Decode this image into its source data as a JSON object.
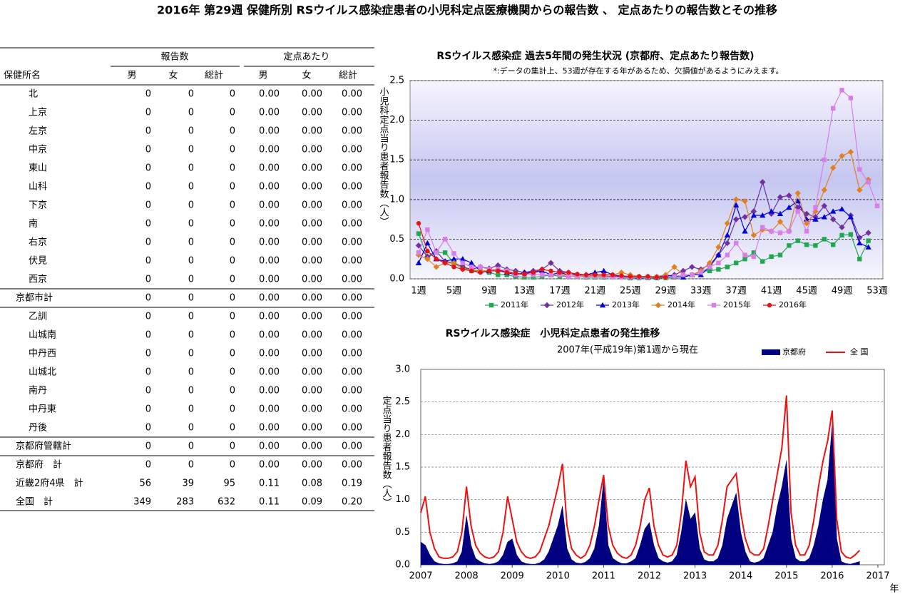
{
  "title": "2016年 第29週 保健所別 RSウイルス感染症患者の小児科定点医療機関からの報告数 、 定点あたりの報告数とその推移",
  "table": {
    "group_headers": [
      "報告数",
      "定点あたり"
    ],
    "columns": [
      "保健所名",
      "男",
      "女",
      "総計",
      "男",
      "女",
      "総計"
    ],
    "rows": [
      [
        "北",
        "0",
        "0",
        "0",
        "0.00",
        "0.00",
        "0.00"
      ],
      [
        "上京",
        "0",
        "0",
        "0",
        "0.00",
        "0.00",
        "0.00"
      ],
      [
        "左京",
        "0",
        "0",
        "0",
        "0.00",
        "0.00",
        "0.00"
      ],
      [
        "中京",
        "0",
        "0",
        "0",
        "0.00",
        "0.00",
        "0.00"
      ],
      [
        "東山",
        "0",
        "0",
        "0",
        "0.00",
        "0.00",
        "0.00"
      ],
      [
        "山科",
        "0",
        "0",
        "0",
        "0.00",
        "0.00",
        "0.00"
      ],
      [
        "下京",
        "0",
        "0",
        "0",
        "0.00",
        "0.00",
        "0.00"
      ],
      [
        "南",
        "0",
        "0",
        "0",
        "0.00",
        "0.00",
        "0.00"
      ],
      [
        "右京",
        "0",
        "0",
        "0",
        "0.00",
        "0.00",
        "0.00"
      ],
      [
        "伏見",
        "0",
        "0",
        "0",
        "0.00",
        "0.00",
        "0.00"
      ],
      [
        "西京",
        "0",
        "0",
        "0",
        "0.00",
        "0.00",
        "0.00"
      ],
      [
        "京都市計",
        "0",
        "0",
        "0",
        "0.00",
        "0.00",
        "0.00"
      ],
      [
        "乙訓",
        "0",
        "0",
        "0",
        "0.00",
        "0.00",
        "0.00"
      ],
      [
        "山城南",
        "0",
        "0",
        "0",
        "0.00",
        "0.00",
        "0.00"
      ],
      [
        "中丹西",
        "0",
        "0",
        "0",
        "0.00",
        "0.00",
        "0.00"
      ],
      [
        "山城北",
        "0",
        "0",
        "0",
        "0.00",
        "0.00",
        "0.00"
      ],
      [
        "南丹",
        "0",
        "0",
        "0",
        "0.00",
        "0.00",
        "0.00"
      ],
      [
        "中丹東",
        "0",
        "0",
        "0",
        "0.00",
        "0.00",
        "0.00"
      ],
      [
        "丹後",
        "0",
        "0",
        "0",
        "0.00",
        "0.00",
        "0.00"
      ],
      [
        "京都府管轄計",
        "0",
        "0",
        "0",
        "0.00",
        "0.00",
        "0.00"
      ],
      [
        "京都府　計",
        "0",
        "0",
        "0",
        "0.00",
        "0.00",
        "0.00"
      ],
      [
        "近畿2府4県　計",
        "56",
        "39",
        "95",
        "0.11",
        "0.08",
        "0.19"
      ],
      [
        "全国　計",
        "349",
        "283",
        "632",
        "0.11",
        "0.09",
        "0.20"
      ]
    ]
  },
  "chart_data": [
    {
      "type": "line",
      "title": "RSウイルス感染症 過去5年間の発生状況 (京都府、定点あたり報告数)",
      "subtitle": "*:データの集計上、53週が存在する年があるため、欠損値があるようにみえます。",
      "y_label": "小児科定点当り患者報告数（人）",
      "categories": [
        "1週",
        null,
        null,
        null,
        "5週",
        null,
        null,
        null,
        "9週",
        null,
        null,
        null,
        "13週",
        null,
        null,
        null,
        "17週",
        null,
        null,
        null,
        "21週",
        null,
        null,
        null,
        "25週",
        null,
        null,
        null,
        "29週",
        null,
        null,
        null,
        "33週",
        null,
        null,
        null,
        "37週",
        null,
        null,
        null,
        "41週",
        null,
        null,
        null,
        "45週",
        null,
        null,
        null,
        "49週",
        null,
        null,
        null,
        "53週"
      ],
      "ylim": [
        0,
        2.5
      ],
      "yticks": [
        {
          "value": 0,
          "label": "0.0"
        },
        0.5,
        {
          "value": 1,
          "label": "1.0"
        },
        1.5,
        {
          "value": 2,
          "label": "2.0"
        },
        2.5
      ],
      "grid": true,
      "series": [
        {
          "name": "2011年",
          "color": "#1fa84f",
          "marker": "square",
          "values": [
            0.57,
            0.27,
            0.33,
            0.33,
            0.2,
            0.15,
            0.1,
            0.1,
            0.08,
            0.05,
            0.05,
            0.03,
            0.02,
            0.02,
            0.03,
            0.05,
            0.03,
            0.03,
            0.03,
            0.02,
            0.02,
            0.02,
            0.02,
            0.02,
            0.01,
            0.01,
            0.01,
            0.01,
            0.01,
            0.02,
            0.03,
            0.05,
            0.1,
            0.1,
            0.12,
            0.15,
            0.2,
            0.25,
            0.33,
            0.22,
            0.28,
            0.3,
            0.42,
            0.48,
            0.43,
            0.42,
            0.5,
            0.43,
            0.55,
            0.56,
            0.25,
            0.48,
            null
          ]
        },
        {
          "name": "2012年",
          "color": "#7030a0",
          "marker": "diamond",
          "values": [
            0.42,
            0.28,
            0.35,
            0.22,
            0.2,
            0.15,
            0.12,
            0.15,
            0.13,
            0.17,
            0.12,
            0.1,
            0.08,
            0.1,
            0.12,
            0.2,
            0.1,
            0.08,
            0.05,
            0.05,
            0.05,
            0.03,
            0.03,
            0.03,
            0.03,
            0.02,
            0.02,
            0.02,
            0.03,
            0.05,
            0.1,
            0.15,
            0.12,
            0.18,
            0.3,
            0.45,
            0.75,
            0.78,
            0.85,
            1.22,
            0.82,
            1.03,
            1.05,
            0.9,
            0.82,
            0.78,
            0.92,
            0.75,
            0.65,
            0.8,
            0.52,
            0.58,
            null
          ]
        },
        {
          "name": "2013年",
          "color": "#0000dd",
          "marker": "triangle",
          "values": [
            0.2,
            0.45,
            0.25,
            0.22,
            0.25,
            0.25,
            0.2,
            0.1,
            0.1,
            0.12,
            0.08,
            0.05,
            0.08,
            0.08,
            0.1,
            0.05,
            0.08,
            0.05,
            0.05,
            0.05,
            0.08,
            0.1,
            0.05,
            0.03,
            0.02,
            0.03,
            0.02,
            0.02,
            0.05,
            0.03,
            0.02,
            0.05,
            0.05,
            0.15,
            0.3,
            0.55,
            0.93,
            0.6,
            0.8,
            0.8,
            0.85,
            0.82,
            0.9,
            0.98,
            0.75,
            0.75,
            0.78,
            0.85,
            0.88,
            0.78,
            0.45,
            0.4,
            null
          ]
        },
        {
          "name": "2014年",
          "color": "#e08020",
          "marker": "diamond",
          "values": [
            0.3,
            0.25,
            0.15,
            0.2,
            0.2,
            0.12,
            0.12,
            0.1,
            0.1,
            0.12,
            0.1,
            0.07,
            0.05,
            0.05,
            0.05,
            0.05,
            0.05,
            0.05,
            0.04,
            0.04,
            0.04,
            0.04,
            0.05,
            0.08,
            0.05,
            0.03,
            0.03,
            0.03,
            0.05,
            0.15,
            0.05,
            0.05,
            0.1,
            0.2,
            0.4,
            0.7,
            1.0,
            0.98,
            0.55,
            0.62,
            0.6,
            0.72,
            0.6,
            1.08,
            0.7,
            0.85,
            1.12,
            1.4,
            1.55,
            1.6,
            1.12,
            1.25,
            null
          ]
        },
        {
          "name": "2015年",
          "color": "#d77ee8",
          "marker": "square",
          "values": [
            0.33,
            0.62,
            0.33,
            0.5,
            0.32,
            0.2,
            0.15,
            0.15,
            0.12,
            0.12,
            0.1,
            0.05,
            0.05,
            0.05,
            0.05,
            0.05,
            0.05,
            0.03,
            0.03,
            0.03,
            0.03,
            0.03,
            0.02,
            0.02,
            0.02,
            0.02,
            0.02,
            0.02,
            0.02,
            0.03,
            0.05,
            0.05,
            0.08,
            0.15,
            0.2,
            0.3,
            0.45,
            0.3,
            0.28,
            0.65,
            0.6,
            0.58,
            0.6,
            0.85,
            0.6,
            0.9,
            1.5,
            2.15,
            2.38,
            2.28,
            1.38,
            1.22,
            0.92
          ]
        },
        {
          "name": "2016年",
          "color": "#e81010",
          "marker": "circle",
          "values": [
            0.7,
            0.35,
            0.25,
            0.2,
            0.15,
            0.12,
            0.1,
            0.08,
            0.1,
            0.1,
            0.08,
            0.07,
            0.06,
            0.08,
            0.12,
            0.1,
            0.08,
            0.08,
            0.06,
            0.05,
            0.05,
            0.05,
            0.05,
            0.04,
            0.03,
            0.03,
            0.03,
            0.02,
            0.02,
            null,
            null,
            null,
            null,
            null,
            null,
            null,
            null,
            null,
            null,
            null,
            null,
            null,
            null,
            null,
            null,
            null,
            null,
            null,
            null,
            null,
            null,
            null,
            null
          ]
        }
      ]
    },
    {
      "type": "area",
      "title": "RSウイルス感染症　小児科定点患者の発生推移",
      "subtitle": "2007年(平成19年)第1週から現在",
      "y_label": "定点当り患者報告数（人）",
      "x_label": "年",
      "xlim": [
        2007,
        2017
      ],
      "xticks": [
        2007,
        2008,
        2009,
        2010,
        2011,
        2012,
        2013,
        2014,
        2015,
        2016,
        2017
      ],
      "ylim": [
        0,
        3
      ],
      "yticks": [
        {
          "value": 0,
          "label": "0.0"
        },
        0.5,
        {
          "value": 1,
          "label": "1.0"
        },
        1.5,
        {
          "value": 2,
          "label": "2.0"
        },
        2.5,
        {
          "value": 3,
          "label": "3.0"
        }
      ],
      "grid": true,
      "x": [
        2007,
        2007.1,
        2007.2,
        2007.3,
        2007.4,
        2007.5,
        2007.6,
        2007.7,
        2007.8,
        2007.9,
        2008,
        2008.1,
        2008.2,
        2008.3,
        2008.4,
        2008.5,
        2008.6,
        2008.7,
        2008.8,
        2008.9,
        2009,
        2009.1,
        2009.2,
        2009.3,
        2009.4,
        2009.5,
        2009.6,
        2009.7,
        2009.8,
        2009.9,
        2010,
        2010.1,
        2010.2,
        2010.3,
        2010.4,
        2010.5,
        2010.6,
        2010.7,
        2010.8,
        2010.9,
        2011,
        2011.1,
        2011.2,
        2011.3,
        2011.4,
        2011.5,
        2011.6,
        2011.7,
        2011.8,
        2011.9,
        2012,
        2012.1,
        2012.2,
        2012.3,
        2012.4,
        2012.5,
        2012.6,
        2012.7,
        2012.8,
        2012.9,
        2013,
        2013.1,
        2013.2,
        2013.3,
        2013.4,
        2013.5,
        2013.6,
        2013.7,
        2013.8,
        2013.9,
        2014,
        2014.1,
        2014.2,
        2014.3,
        2014.4,
        2014.5,
        2014.6,
        2014.7,
        2014.8,
        2014.9,
        2015,
        2015.1,
        2015.2,
        2015.3,
        2015.4,
        2015.5,
        2015.6,
        2015.7,
        2015.8,
        2015.9,
        2016,
        2016.1,
        2016.2,
        2016.3,
        2016.4,
        2016.5,
        2016.6
      ],
      "series": [
        {
          "name": "京都府",
          "color": "#000080",
          "type": "area",
          "values": [
            0.35,
            0.3,
            0.15,
            0.05,
            0.02,
            0.01,
            0.01,
            0.02,
            0.05,
            0.2,
            0.75,
            0.3,
            0.1,
            0.05,
            0.02,
            0.01,
            0.02,
            0.05,
            0.15,
            0.35,
            0.4,
            0.15,
            0.05,
            0.02,
            0.01,
            0.01,
            0.03,
            0.08,
            0.2,
            0.4,
            0.6,
            0.9,
            0.25,
            0.08,
            0.03,
            0.02,
            0.04,
            0.1,
            0.25,
            0.6,
            1.3,
            0.3,
            0.1,
            0.05,
            0.02,
            0.02,
            0.05,
            0.1,
            0.3,
            0.55,
            0.65,
            0.3,
            0.1,
            0.05,
            0.03,
            0.05,
            0.15,
            0.5,
            1.0,
            0.7,
            0.8,
            0.25,
            0.08,
            0.05,
            0.05,
            0.1,
            0.3,
            0.7,
            0.9,
            1.1,
            0.5,
            0.2,
            0.05,
            0.03,
            0.05,
            0.1,
            0.3,
            0.5,
            0.9,
            1.2,
            1.6,
            0.4,
            0.1,
            0.05,
            0.05,
            0.1,
            0.3,
            0.6,
            1.0,
            1.3,
            2.15,
            0.4,
            0.05,
            0.02,
            0.01,
            0.03,
            0.05
          ]
        },
        {
          "name": "全 国",
          "color": "#ee1111",
          "type": "line",
          "values": [
            0.8,
            1.05,
            0.5,
            0.25,
            0.12,
            0.1,
            0.1,
            0.12,
            0.2,
            0.5,
            1.2,
            0.6,
            0.3,
            0.18,
            0.12,
            0.1,
            0.12,
            0.2,
            0.5,
            1.05,
            0.7,
            0.35,
            0.2,
            0.12,
            0.1,
            0.12,
            0.2,
            0.4,
            0.6,
            0.9,
            1.2,
            1.55,
            0.6,
            0.25,
            0.15,
            0.1,
            0.15,
            0.3,
            0.6,
            1.0,
            1.38,
            0.6,
            0.3,
            0.18,
            0.12,
            0.1,
            0.15,
            0.3,
            0.6,
            1.0,
            1.18,
            0.6,
            0.3,
            0.15,
            0.12,
            0.15,
            0.3,
            0.8,
            1.6,
            1.2,
            1.35,
            0.5,
            0.2,
            0.15,
            0.15,
            0.3,
            0.7,
            1.2,
            1.3,
            1.4,
            0.8,
            0.4,
            0.2,
            0.15,
            0.15,
            0.25,
            0.6,
            1.0,
            1.4,
            1.8,
            2.6,
            0.8,
            0.3,
            0.15,
            0.15,
            0.3,
            0.7,
            1.2,
            1.6,
            1.9,
            2.37,
            0.7,
            0.2,
            0.12,
            0.1,
            0.15,
            0.22
          ]
        }
      ]
    }
  ]
}
